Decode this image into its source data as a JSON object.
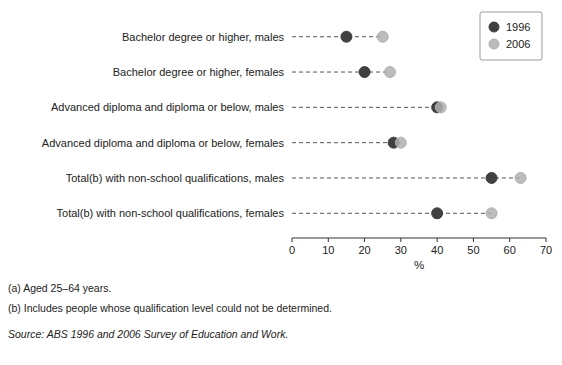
{
  "chart_data": {
    "type": "dot",
    "orientation": "horizontal",
    "categories": [
      "Bachelor degree or higher, males",
      "Bachelor degree or higher, females",
      "Advanced diploma and diploma or below, males",
      "Advanced diploma and diploma or below, females",
      "Total(b) with non-school qualifications, males",
      "Total(b) with non-school qualifications, females"
    ],
    "series": [
      {
        "name": "1996",
        "color": "#404040",
        "values": [
          15,
          20,
          40,
          28,
          55,
          40
        ]
      },
      {
        "name": "2006",
        "color": "#b0b0b0",
        "values": [
          25,
          27,
          41,
          30,
          63,
          55
        ]
      }
    ],
    "xlabel": "%",
    "xlim": [
      0,
      70
    ],
    "xticks": [
      0,
      10,
      20,
      30,
      40,
      50,
      60,
      70
    ],
    "legend": "upper right",
    "grid": false,
    "annotations": [
      "(a) Aged 25–64 years.",
      "(b) Includes people whose qualification level could not be determined.",
      "Source: ABS 1996 and 2006 Survey of Education and Work."
    ]
  }
}
